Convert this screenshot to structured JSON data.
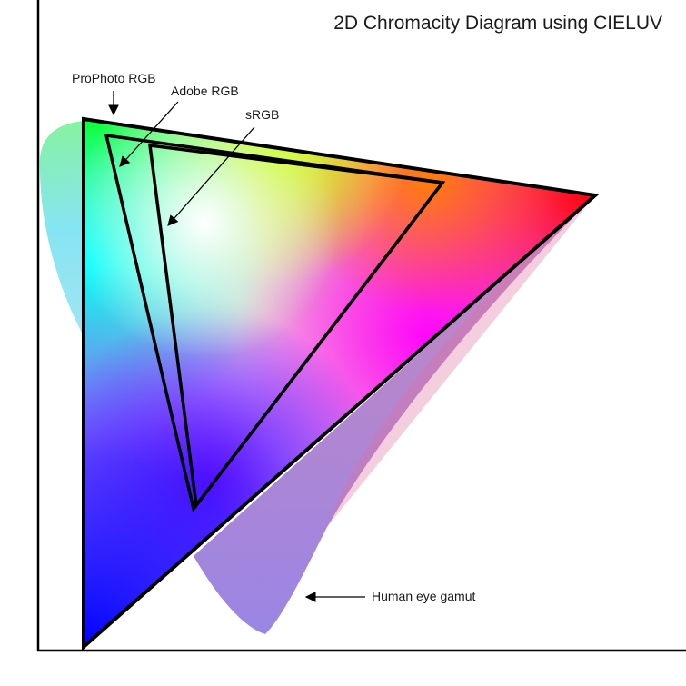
{
  "title": "2D Chromacity Diagram using CIELUV",
  "labels": {
    "prophoto": "ProPhoto RGB",
    "adobe": "Adobe RGB",
    "srgb": "sRGB",
    "human_eye": "Human eye gamut"
  },
  "colors": {
    "outline": "#000000",
    "background": "#ffffff"
  }
}
